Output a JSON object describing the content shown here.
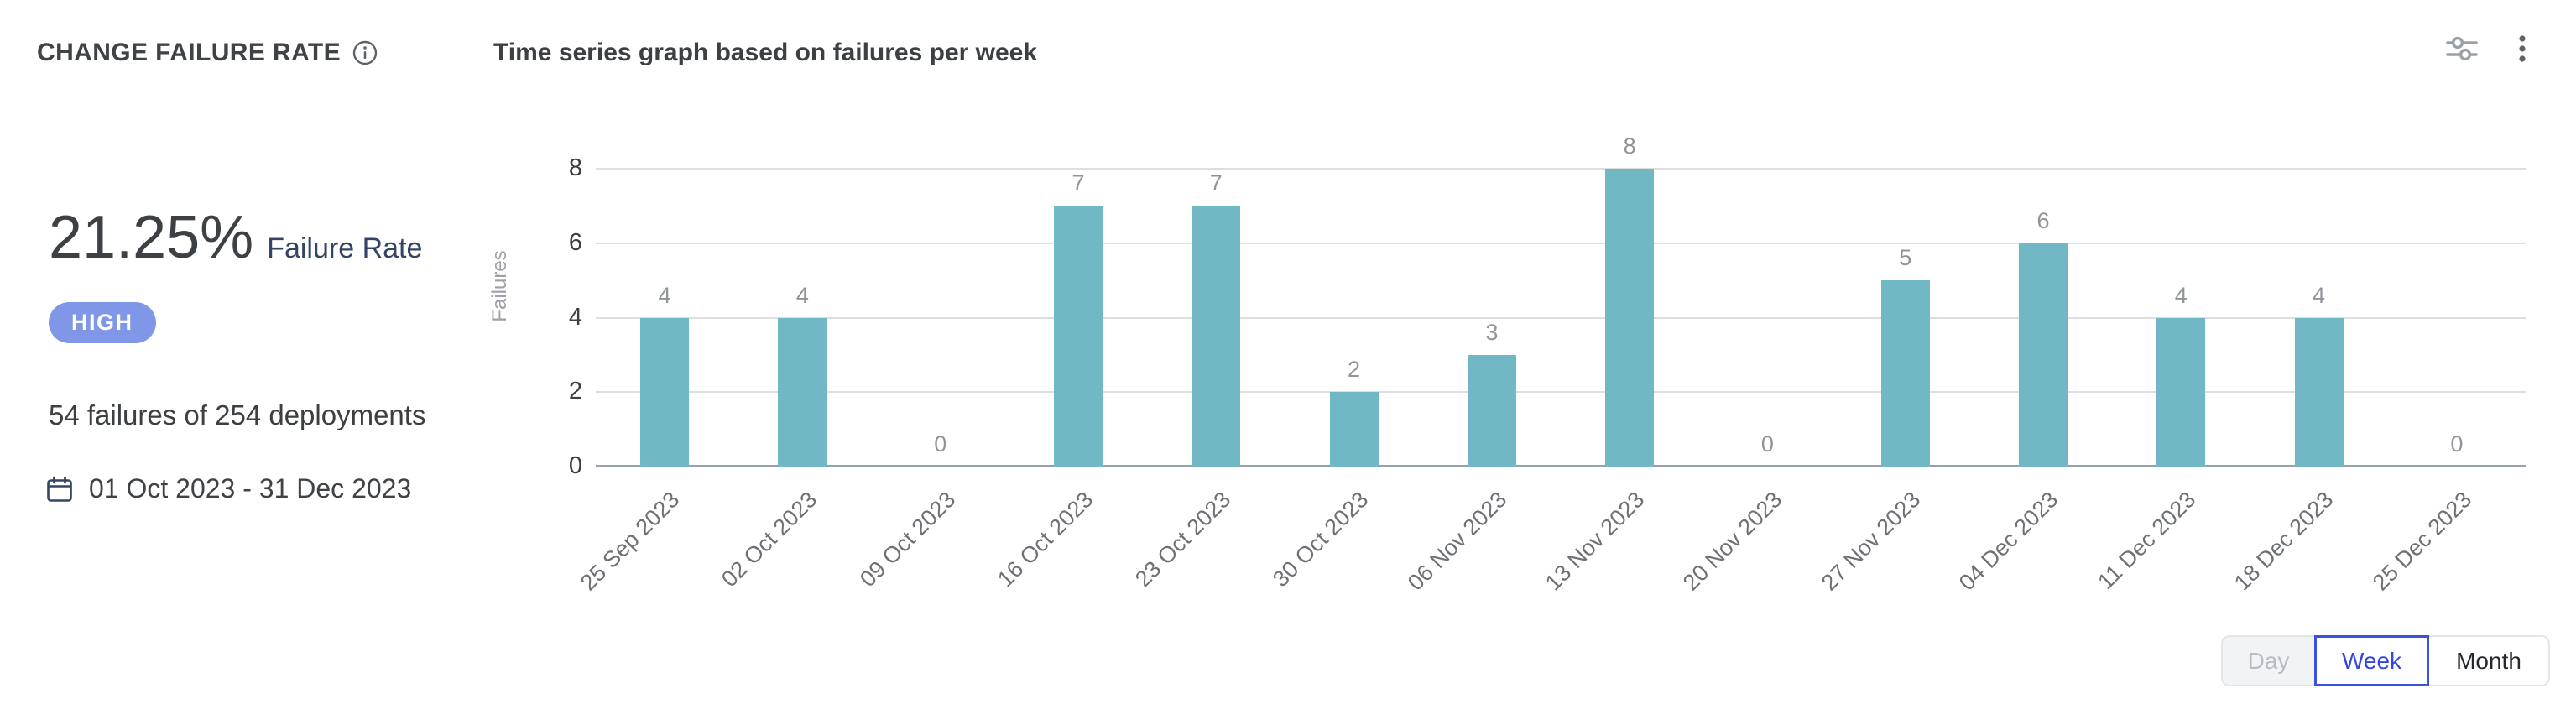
{
  "header": {
    "title": "CHANGE FAILURE RATE",
    "info_icon": "info-icon",
    "settings_icon": "sliders-icon",
    "menu_icon": "kebab-menu-icon"
  },
  "summary": {
    "rate_value": "21.25%",
    "rate_label": "Failure Rate",
    "level_badge": "HIGH",
    "stat_text": "54 failures of 254 deployments",
    "date_range": "01 Oct 2023 - 31 Dec 2023"
  },
  "chart_data": {
    "type": "bar",
    "title": "Time series graph based on failures per week",
    "categories": [
      "25 Sep 2023",
      "02 Oct 2023",
      "09 Oct 2023",
      "16 Oct 2023",
      "23 Oct 2023",
      "30 Oct 2023",
      "06 Nov 2023",
      "13 Nov 2023",
      "20 Nov 2023",
      "27 Nov 2023",
      "04 Dec 2023",
      "11 Dec 2023",
      "18 Dec 2023",
      "25 Dec 2023"
    ],
    "values": [
      4,
      4,
      0,
      7,
      7,
      2,
      3,
      8,
      0,
      5,
      6,
      4,
      4,
      0
    ],
    "xlabel": "",
    "ylabel": "Failures",
    "ylim": [
      0,
      8
    ],
    "yticks": [
      0,
      2,
      4,
      6,
      8
    ],
    "grid": true,
    "legend": "none",
    "bar_color": "#70b9c4",
    "value_labels": true
  },
  "granularity_toggle": {
    "options": [
      {
        "label": "Day",
        "state": "disabled"
      },
      {
        "label": "Week",
        "state": "selected"
      },
      {
        "label": "Month",
        "state": "default"
      }
    ]
  },
  "colors": {
    "bar": "#70b9c4",
    "badge_high": "#8097e8",
    "accent_selected": "#3d51e1",
    "navy_text": "#344563",
    "grid": "#dedede",
    "axis": "#99a1ae"
  }
}
